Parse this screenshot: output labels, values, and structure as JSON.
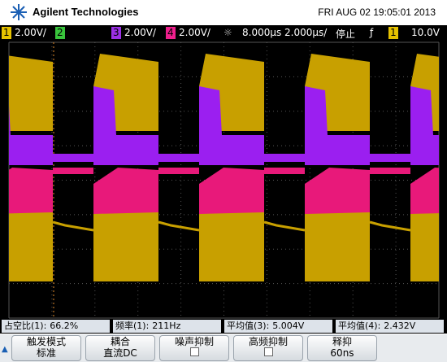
{
  "header": {
    "brand": "Agilent Technologies",
    "datetime": "FRI AUG 02 19:05:01 2013"
  },
  "status_bar": {
    "ch1": "1",
    "ch1_scale": "2.00V/",
    "ch2": "2",
    "ch3": "3",
    "ch3_scale": "2.00V/",
    "ch4": "4",
    "ch4_scale": "2.00V/",
    "delay": "8.000µs",
    "timebase": "2.000µs/",
    "run_state": "停止",
    "trigger_slope": "ƒ",
    "trigger_source": "1",
    "trigger_level": "10.0V"
  },
  "measurements": [
    {
      "name": "占空比(1):",
      "value": "66.2%"
    },
    {
      "name": "频率(1):",
      "value": "211Hz"
    },
    {
      "name": "平均值(3):",
      "value": "5.004V"
    },
    {
      "name": "平均值(4):",
      "value": "2.432V"
    }
  ],
  "softkeys": [
    {
      "label": "触发模式",
      "value": "标准"
    },
    {
      "label": "耦合",
      "value": "直流DC"
    },
    {
      "label": "噪声抑制"
    },
    {
      "label": "高频抑制"
    },
    {
      "label": "释抑",
      "value": "60ns"
    }
  ]
}
